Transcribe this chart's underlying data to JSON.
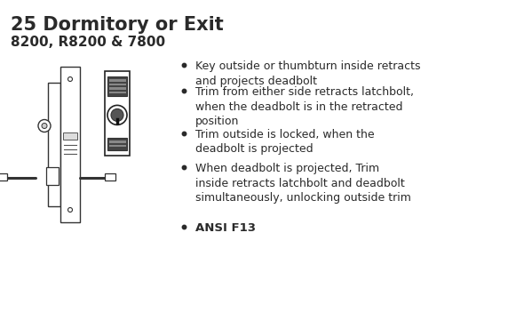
{
  "title": "25 Dormitory or Exit",
  "subtitle": "8200, R8200 & 7800",
  "bullet_points": [
    "Key outside or thumbturn inside retracts\nand projects deadbolt",
    "Trim from either side retracts latchbolt,\nwhen the deadbolt is in the retracted\nposition",
    "Trim outside is locked, when the\ndeadbolt is projected",
    "When deadbolt is projected, Trim\ninside retracts latchbolt and deadbolt\nsimultaneously, unlocking outside trim",
    "ANSI F13"
  ],
  "bg_color": "#ffffff",
  "text_color": "#2a2a2a",
  "title_fontsize": 15,
  "subtitle_fontsize": 11,
  "bullet_fontsize": 9,
  "figsize": [
    5.72,
    3.61
  ],
  "dpi": 100
}
